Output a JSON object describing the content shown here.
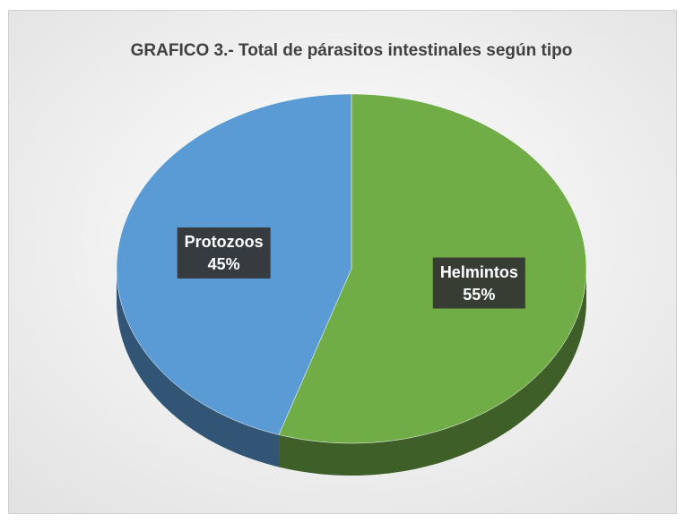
{
  "chart_data": {
    "type": "pie",
    "title": "GRAFICO 3.- Total de párasitos intestinales según tipo",
    "categories": [
      "Helmintos",
      "Protozoos"
    ],
    "values": [
      55,
      45
    ],
    "value_labels": [
      "55%",
      "45%"
    ],
    "colors": [
      "#70ad47",
      "#5b9bd5"
    ]
  }
}
